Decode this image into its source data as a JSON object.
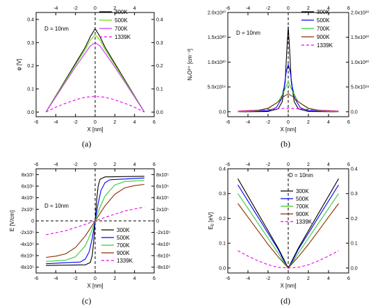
{
  "captions": {
    "a": "(a)",
    "b": "(b)",
    "c": "(c)",
    "d": "(d)"
  },
  "colors": {
    "300K": "#000000",
    "500K": "#0000ff",
    "700K": "#33cc33",
    "900K": "#8b2a00",
    "1339K": "#ee00ee",
    "700K_a": "#66dd00",
    "700K_purple": "#cc33ff"
  },
  "chart_data": [
    {
      "id": "a",
      "type": "line",
      "xlabel": "X [nm]",
      "ylabel": "φ [V]",
      "xlim": [
        -6,
        6
      ],
      "ylim": [
        -0.02,
        0.43
      ],
      "xticks": [
        -6,
        -4,
        -2,
        0,
        2,
        4,
        6
      ],
      "xticks_top": [
        -4,
        -2,
        0,
        2,
        4
      ],
      "yticks": [
        0.0,
        0.1,
        0.2,
        0.3,
        0.4
      ],
      "ytick_labels": [
        "0.0",
        "0.1",
        "0.2",
        "0.3",
        "0.4"
      ],
      "annotation": "D = 10nm",
      "legend_position": "top-right",
      "series": [
        {
          "name": "300K",
          "x": [
            -5,
            -4,
            -3,
            -2,
            -1,
            -0.5,
            0,
            0.5,
            1,
            2,
            3,
            4,
            5
          ],
          "y": [
            0,
            0.07,
            0.14,
            0.21,
            0.28,
            0.325,
            0.36,
            0.325,
            0.28,
            0.21,
            0.14,
            0.07,
            0
          ],
          "dashed": false,
          "color_key": "300K"
        },
        {
          "name": "500K",
          "x": [
            -5,
            -4,
            -3,
            -2,
            -1,
            -0.5,
            0,
            0.5,
            1,
            2,
            3,
            4,
            5
          ],
          "y": [
            0,
            0.068,
            0.136,
            0.204,
            0.27,
            0.31,
            0.335,
            0.31,
            0.27,
            0.204,
            0.136,
            0.068,
            0
          ],
          "dashed": false,
          "color_key": "700K_a"
        },
        {
          "name": "700K",
          "x": [
            -5,
            -4,
            -3,
            -2,
            -1,
            -0.5,
            0,
            0.5,
            1,
            2,
            3,
            4,
            5
          ],
          "y": [
            0,
            0.065,
            0.13,
            0.195,
            0.255,
            0.285,
            0.3,
            0.285,
            0.255,
            0.195,
            0.13,
            0.065,
            0
          ],
          "dashed": false,
          "color_key": "700K_purple"
        },
        {
          "name": "1339K",
          "x": [
            -5,
            -4,
            -3,
            -2,
            -1,
            0,
            1,
            2,
            3,
            4,
            5
          ],
          "y": [
            0,
            0.021,
            0.038,
            0.053,
            0.064,
            0.068,
            0.064,
            0.053,
            0.038,
            0.021,
            0
          ],
          "dashed": true,
          "color_key": "1339K"
        }
      ]
    },
    {
      "id": "b",
      "type": "line",
      "xlabel": "X [nm]",
      "ylabel": "NᵥO²⁺ [cm⁻³]",
      "xlim": [
        -6,
        6
      ],
      "ylim": [
        -0.1,
        2.0
      ],
      "xticks": [
        -6,
        -4,
        -2,
        0,
        2,
        4,
        6
      ],
      "xticks_top": [
        -6,
        -4,
        -2,
        0,
        2,
        4,
        6
      ],
      "yticks": [
        0.0,
        0.5,
        1.0,
        1.5,
        2.0
      ],
      "ytick_labels": [
        "0.0",
        "5.0x10¹⁹",
        "1.0x10²⁰",
        "1.5x10²⁰",
        "2.0x10²⁰"
      ],
      "annotation": "D = 10nm",
      "legend_position": "top-right",
      "series": [
        {
          "name": "300K",
          "x": [
            -5,
            -2,
            -1,
            -0.6,
            -0.3,
            -0.15,
            0,
            0.15,
            0.3,
            0.6,
            1,
            2,
            5
          ],
          "y": [
            0,
            0.005,
            0.06,
            0.2,
            0.6,
            1.2,
            1.72,
            1.2,
            0.6,
            0.2,
            0.06,
            0.005,
            0
          ],
          "dashed": false,
          "color_key": "300K"
        },
        {
          "name": "500K",
          "x": [
            -5,
            -2,
            -1.2,
            -0.7,
            -0.4,
            -0.2,
            0,
            0.2,
            0.4,
            0.7,
            1.2,
            2,
            5
          ],
          "y": [
            0,
            0.02,
            0.08,
            0.25,
            0.5,
            0.8,
            0.95,
            0.8,
            0.5,
            0.25,
            0.08,
            0.02,
            0
          ],
          "dashed": false,
          "color_key": "500K"
        },
        {
          "name": "700K",
          "x": [
            -5,
            -3,
            -2,
            -1,
            -0.5,
            0,
            0.5,
            1,
            2,
            3,
            5
          ],
          "y": [
            0,
            0.02,
            0.06,
            0.2,
            0.38,
            0.6,
            0.38,
            0.2,
            0.06,
            0.02,
            0
          ],
          "dashed": false,
          "color_key": "700K"
        },
        {
          "name": "900K",
          "x": [
            -5,
            -3,
            -2,
            -1,
            -0.5,
            0,
            0.5,
            1,
            2,
            3,
            5
          ],
          "y": [
            0.01,
            0.03,
            0.07,
            0.2,
            0.3,
            0.36,
            0.3,
            0.2,
            0.07,
            0.03,
            0.01
          ],
          "dashed": false,
          "color_key": "900K"
        },
        {
          "name": "1339K",
          "x": [
            -5,
            -3,
            -1,
            0,
            1,
            3,
            5
          ],
          "y": [
            0.01,
            0.03,
            0.06,
            0.07,
            0.06,
            0.03,
            0.01
          ],
          "dashed": true,
          "color_key": "1339K"
        }
      ]
    },
    {
      "id": "c",
      "type": "line",
      "xlabel": "X [nm]",
      "ylabel": "E [V/cm]",
      "xlim": [
        -6,
        6
      ],
      "ylim": [
        -9,
        9
      ],
      "xticks": [
        -6,
        -4,
        -2,
        0,
        2,
        4,
        6
      ],
      "xticks_top": [
        -6,
        -4,
        -2,
        0,
        2,
        4,
        6
      ],
      "yticks": [
        -8,
        -6,
        -4,
        -2,
        0,
        2,
        4,
        6,
        8
      ],
      "ytick_labels_left": [
        "-8x10⁵",
        "-6x10⁵",
        "-4x10⁵",
        "-2x10⁵",
        "0",
        "2x10⁵",
        "4x10⁵",
        "6x10⁵",
        "8x10⁵"
      ],
      "ytick_labels_right": [
        "-8x10⁵",
        "-6x10⁵",
        "-4x10⁵",
        "-2x10⁵",
        "0",
        "2x10⁵",
        "4x10⁵",
        "6x10⁵",
        "8x10⁵"
      ],
      "annotation": "D = 10nm",
      "legend_position": "bottom-right",
      "series": [
        {
          "name": "300K",
          "x": [
            -5,
            -1,
            -0.5,
            -0.3,
            -0.15,
            0,
            0.15,
            0.3,
            0.5,
            1,
            5
          ],
          "y": [
            -7.7,
            -7.6,
            -7.2,
            -6,
            -3.5,
            0,
            3.5,
            6,
            7.2,
            7.6,
            7.7
          ],
          "dashed": false,
          "color_key": "300K"
        },
        {
          "name": "500K",
          "x": [
            -5,
            -1.5,
            -1,
            -0.6,
            -0.3,
            0,
            0.3,
            0.6,
            1,
            1.5,
            5
          ],
          "y": [
            -7.4,
            -7.1,
            -6.6,
            -5.3,
            -3,
            0,
            3,
            5.3,
            6.6,
            7.1,
            7.4
          ],
          "dashed": false,
          "color_key": "500K"
        },
        {
          "name": "700K",
          "x": [
            -5,
            -3,
            -2,
            -1,
            -0.5,
            0,
            0.5,
            1,
            2,
            3,
            5
          ],
          "y": [
            -7.0,
            -6.8,
            -6.2,
            -4.3,
            -2.4,
            0,
            2.4,
            4.3,
            6.2,
            6.8,
            7.0
          ],
          "dashed": false,
          "color_key": "700K"
        },
        {
          "name": "900K",
          "x": [
            -5,
            -4,
            -3,
            -2,
            -1,
            0,
            1,
            2,
            3,
            4,
            5
          ],
          "y": [
            -6.3,
            -6.1,
            -5.7,
            -4.6,
            -2.6,
            0,
            2.6,
            4.6,
            5.7,
            6.1,
            6.3
          ],
          "dashed": false,
          "color_key": "900K"
        },
        {
          "name": "1339K",
          "x": [
            -5,
            -3,
            -1,
            0,
            1,
            3,
            5
          ],
          "y": [
            -2.4,
            -1.7,
            -0.6,
            0,
            0.6,
            1.7,
            2.4
          ],
          "dashed": true,
          "color_key": "1339K"
        }
      ]
    },
    {
      "id": "d",
      "type": "line",
      "xlabel": "X [nm]",
      "ylabel": "Eᵨ [eV]",
      "xlim": [
        -6,
        6
      ],
      "ylim": [
        -0.02,
        0.4
      ],
      "xticks": [
        -6,
        -4,
        -2,
        0,
        2,
        4,
        6
      ],
      "xticks_top": [
        -6,
        -4,
        -2,
        0,
        2,
        4,
        6
      ],
      "yticks": [
        0.0,
        0.1,
        0.2,
        0.3,
        0.4
      ],
      "ytick_labels": [
        "0.0",
        "0.1",
        "0.2",
        "0.3",
        "0.4"
      ],
      "annotation": "D = 10nm",
      "legend_position": "top-center",
      "series": [
        {
          "name": "300K",
          "x": [
            -5,
            -4,
            -3,
            -2,
            -1,
            -0.5,
            0,
            0.5,
            1,
            2,
            3,
            4,
            5
          ],
          "y": [
            0.36,
            0.29,
            0.22,
            0.15,
            0.08,
            0.04,
            0,
            0.04,
            0.08,
            0.15,
            0.22,
            0.29,
            0.36
          ],
          "dashed": false,
          "color_key": "300K"
        },
        {
          "name": "500K",
          "x": [
            -5,
            -4,
            -3,
            -2,
            -1,
            -0.5,
            0,
            0.5,
            1,
            2,
            3,
            4,
            5
          ],
          "y": [
            0.335,
            0.27,
            0.205,
            0.14,
            0.075,
            0.035,
            0,
            0.035,
            0.075,
            0.14,
            0.205,
            0.27,
            0.335
          ],
          "dashed": false,
          "color_key": "500K"
        },
        {
          "name": "700K",
          "x": [
            -5,
            -4,
            -3,
            -2,
            -1,
            -0.5,
            0,
            0.5,
            1,
            2,
            3,
            4,
            5
          ],
          "y": [
            0.3,
            0.24,
            0.18,
            0.12,
            0.06,
            0.028,
            0,
            0.028,
            0.06,
            0.12,
            0.18,
            0.24,
            0.3
          ],
          "dashed": false,
          "color_key": "700K"
        },
        {
          "name": "900K",
          "x": [
            -5,
            -4,
            -3,
            -2,
            -1,
            0,
            1,
            2,
            3,
            4,
            5
          ],
          "y": [
            0.26,
            0.205,
            0.15,
            0.095,
            0.045,
            0,
            0.045,
            0.095,
            0.15,
            0.205,
            0.26
          ],
          "dashed": false,
          "color_key": "900K"
        },
        {
          "name": "1339K",
          "x": [
            -5,
            -4,
            -3,
            -2,
            -1,
            0,
            1,
            2,
            3,
            4,
            5
          ],
          "y": [
            0.07,
            0.048,
            0.029,
            0.013,
            0.003,
            0,
            0.003,
            0.013,
            0.029,
            0.048,
            0.07
          ],
          "dashed": true,
          "color_key": "1339K"
        }
      ]
    }
  ]
}
